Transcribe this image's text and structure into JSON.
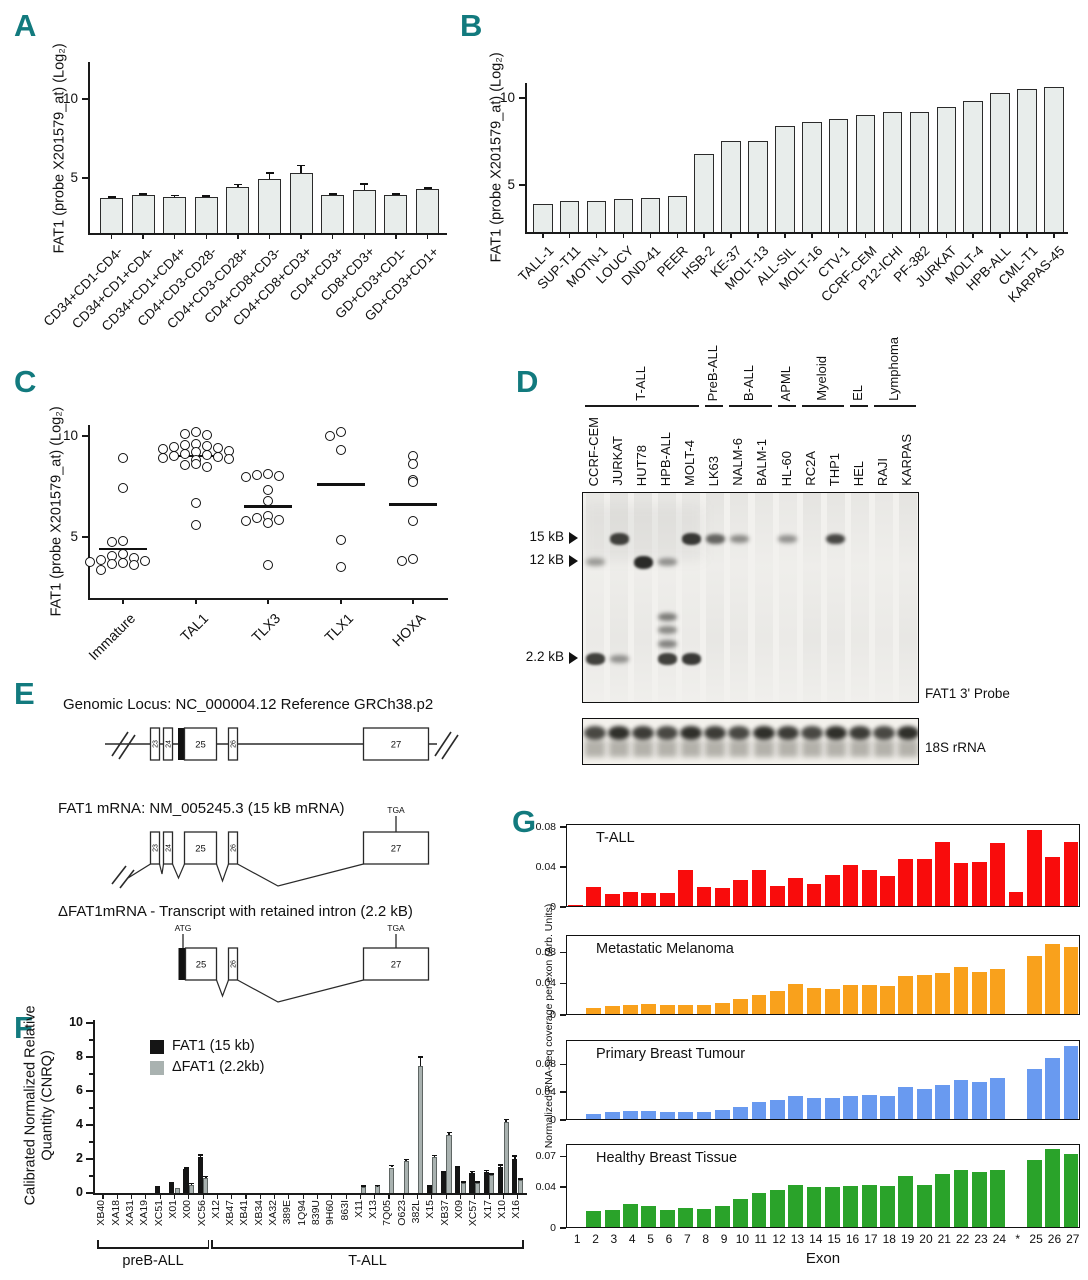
{
  "figure": {
    "panel_letters": {
      "a": "A",
      "b": "B",
      "c": "C",
      "d": "D",
      "e": "E",
      "f": "F",
      "g": "G"
    },
    "accent_color": "#127a7e"
  },
  "chart_data": [
    {
      "id": "A",
      "type": "bar",
      "ylabel": "FAT1 (probe X201579_at) (Log₂)",
      "yticks": [
        5,
        10
      ],
      "ylim": [
        1.5,
        12.3
      ],
      "bar_color": "#e8edeb",
      "categories": [
        "CD34+CD1-CD4-",
        "CD34+CD1+CD4-",
        "CD34+CD1+CD4+",
        "CD4+CD3-CD28-",
        "CD4+CD3-CD28+",
        "CD4+CD8+CD3-",
        "CD4+CD8+CD3+",
        "CD4+CD3+",
        "CD8+CD3+",
        "GD+CD3+CD1-",
        "GD+CD3+CD1+"
      ],
      "values": [
        3.7,
        3.9,
        3.8,
        3.8,
        4.4,
        4.9,
        5.3,
        3.9,
        4.2,
        3.9,
        4.3
      ],
      "errors": [
        0.06,
        0.05,
        0.06,
        0.04,
        0.15,
        0.4,
        0.45,
        0.05,
        0.4,
        0.05,
        0.04
      ]
    },
    {
      "id": "B",
      "type": "bar",
      "ylabel": "FAT1 (probe X201579_at) (Log₂)",
      "yticks": [
        5,
        10
      ],
      "ylim": [
        2.3,
        11.9
      ],
      "bar_color": "#e8edeb",
      "categories": [
        "TALL-1",
        "SUP-T11",
        "MOTN-1",
        "LOUCY",
        "DND-41",
        "PEER",
        "HSB-2",
        "KE-37",
        "MOLT-13",
        "ALL-SIL",
        "MOLT-16",
        "CTV-1",
        "CCRF-CEM",
        "P12-ICHI",
        "PF-382",
        "JURKAT",
        "MOLT-4",
        "HPB-ALL",
        "CML-T1",
        "KARPAS-45"
      ],
      "values": [
        3.9,
        4.1,
        4.1,
        4.2,
        4.25,
        4.35,
        6.8,
        7.55,
        7.55,
        8.4,
        8.65,
        8.8,
        9.0,
        9.2,
        9.2,
        9.5,
        9.85,
        10.3,
        10.5,
        10.65
      ],
      "errors": [
        0,
        0,
        0,
        0,
        0,
        0,
        0,
        0,
        0,
        0,
        0,
        0,
        0,
        0,
        0,
        0,
        0,
        0,
        0,
        0
      ]
    },
    {
      "id": "C",
      "type": "scatter",
      "ylabel": "FAT1 (probe X201579_at) (Log₂)",
      "yticks": [
        5,
        10
      ],
      "ylim": [
        1.95,
        10.6
      ],
      "groups": [
        {
          "label": "Immature",
          "median": 4.4,
          "points": [
            8.9,
            7.4,
            4.8,
            4.75,
            4.15,
            4.05,
            3.95,
            3.85,
            3.8,
            3.75,
            3.7,
            3.65,
            3.6,
            3.35
          ]
        },
        {
          "label": "TAL1",
          "median": 9.0,
          "points": [
            10.2,
            10.1,
            10.05,
            9.6,
            9.55,
            9.5,
            9.45,
            9.4,
            9.35,
            9.25,
            9.2,
            9.1,
            9.05,
            9.0,
            8.95,
            8.9,
            8.85,
            8.8,
            8.6,
            8.55,
            8.45,
            6.7,
            5.6
          ]
        },
        {
          "label": "TLX3",
          "median": 6.5,
          "points": [
            8.1,
            8.05,
            8.0,
            7.95,
            7.3,
            6.8,
            6.05,
            5.95,
            5.85,
            5.8,
            5.7,
            3.6
          ]
        },
        {
          "label": "TLX1",
          "median": 7.6,
          "points": [
            10.2,
            10.0,
            9.3,
            4.85,
            3.5
          ]
        },
        {
          "label": "HOXA",
          "median": 6.6,
          "points": [
            9.0,
            8.6,
            7.8,
            7.7,
            5.8,
            3.9,
            3.8
          ]
        }
      ]
    },
    {
      "id": "F",
      "type": "bar",
      "ylabel": "Calibrated Normalized Relative Quantity (CNRQ)",
      "yticks": [
        0,
        2,
        4,
        6,
        8,
        10
      ],
      "ylim": [
        0,
        10
      ],
      "legend": [
        {
          "label": "FAT1 (15 kb)",
          "color": "#151515"
        },
        {
          "label": "ΔFAT1 (2.2kb)",
          "color": "#a9b2b0"
        }
      ],
      "categories": [
        "XB40",
        "XA18",
        "XA31",
        "XA19",
        "XC51",
        "X01",
        "X00",
        "XC56",
        "X12",
        "XB47",
        "XB41",
        "XB34",
        "XA32",
        "389E",
        "1Q94",
        "839U",
        "9H60",
        "863I",
        "X11",
        "X13",
        "7Q05",
        "O623",
        "382L",
        "X15",
        "XB37",
        "X09",
        "XC57",
        "X17",
        "X10",
        "X16"
      ],
      "series": [
        {
          "name": "FAT1 (15 kb)",
          "color": "#151515",
          "values": [
            0,
            0,
            0,
            0,
            0.4,
            0.65,
            1.4,
            2.1,
            0,
            0,
            0,
            0,
            0,
            0,
            0,
            0,
            0,
            0,
            0,
            0,
            0,
            0,
            0,
            0.35,
            1.15,
            1.45,
            1.2,
            1.25,
            1.55,
            2.0
          ],
          "errors": [
            0,
            0,
            0,
            0,
            0,
            0,
            0.06,
            0.12,
            0,
            0,
            0,
            0,
            0,
            0,
            0,
            0,
            0,
            0,
            0,
            0,
            0,
            0,
            0,
            0.04,
            0.07,
            0.06,
            0.05,
            0.05,
            0.07,
            0.15
          ]
        },
        {
          "name": "ΔFAT1 (2.2kb)",
          "color": "#a9b2b0",
          "values": [
            0,
            0,
            0,
            0,
            0,
            0.3,
            0.5,
            0.9,
            0,
            0,
            0,
            0,
            0,
            0,
            0,
            0,
            0,
            0,
            0.35,
            0.4,
            1.5,
            1.9,
            7.5,
            2.1,
            3.4,
            0.6,
            0.6,
            1.05,
            4.2,
            0.75
          ],
          "errors": [
            0,
            0,
            0,
            0,
            0,
            0,
            0.04,
            0.06,
            0,
            0,
            0,
            0,
            0,
            0,
            0,
            0,
            0,
            0,
            0.04,
            0.04,
            0.1,
            0.06,
            0.5,
            0.1,
            0.15,
            0.04,
            0.04,
            0.06,
            0.12,
            0.05
          ]
        }
      ],
      "group_brackets": [
        {
          "label": "preB-ALL",
          "from": 0,
          "to": 7
        },
        {
          "label": "T-ALL",
          "from": 8,
          "to": 29
        }
      ]
    },
    {
      "id": "G",
      "type": "bar-multi-panel",
      "shared_ylabel": "Normalized RNA-seq coverage per exon (Arb. Units)",
      "xlabel": "Exon",
      "categories": [
        "1",
        "2",
        "3",
        "4",
        "5",
        "6",
        "7",
        "8",
        "9",
        "10",
        "11",
        "12",
        "13",
        "14",
        "15",
        "16",
        "17",
        "18",
        "19",
        "20",
        "21",
        "22",
        "23",
        "24",
        "*",
        "25",
        "26",
        "27"
      ],
      "panels": [
        {
          "title": "T-ALL",
          "color": "#f90c0c",
          "yticks": [
            0,
            0.04,
            0.08
          ],
          "ylim": [
            0,
            0.083
          ],
          "values": [
            0.002,
            0.02,
            0.013,
            0.015,
            0.014,
            0.014,
            0.037,
            0.02,
            0.019,
            0.027,
            0.037,
            0.021,
            0.029,
            0.023,
            0.032,
            0.042,
            0.037,
            0.031,
            0.048,
            0.048,
            0.065,
            0.044,
            0.045,
            0.064,
            0.015,
            0.077,
            0.05,
            0.065
          ]
        },
        {
          "title": "Metastatic Melanoma",
          "color": "#f9a11c",
          "yticks": [
            0,
            0.04,
            0.08
          ],
          "ylim": [
            0,
            0.102
          ],
          "values": [
            0,
            0.009,
            0.011,
            0.013,
            0.014,
            0.013,
            0.013,
            0.013,
            0.015,
            0.021,
            0.026,
            0.031,
            0.039,
            0.034,
            0.033,
            0.038,
            0.038,
            0.037,
            0.05,
            0.051,
            0.054,
            0.061,
            0.055,
            0.059,
            0,
            0.075,
            0.09,
            0.087
          ]
        },
        {
          "title": "Primary Breast Tumour",
          "color": "#699af0",
          "yticks": [
            0,
            0.04,
            0.08
          ],
          "ylim": [
            0,
            0.115
          ],
          "values": [
            0,
            0.009,
            0.011,
            0.013,
            0.013,
            0.011,
            0.012,
            0.012,
            0.014,
            0.019,
            0.026,
            0.029,
            0.034,
            0.032,
            0.031,
            0.034,
            0.036,
            0.035,
            0.047,
            0.044,
            0.051,
            0.058,
            0.055,
            0.06,
            0,
            0.074,
            0.089,
            0.106
          ]
        },
        {
          "title": "Healthy Breast Tissue",
          "color": "#2aa32a",
          "yticks": [
            0,
            0.04,
            0.07
          ],
          "ylim": [
            0,
            0.082
          ],
          "values": [
            0,
            0.017,
            0.018,
            0.023,
            0.021,
            0.018,
            0.02,
            0.019,
            0.021,
            0.028,
            0.034,
            0.037,
            0.042,
            0.04,
            0.04,
            0.041,
            0.042,
            0.041,
            0.051,
            0.042,
            0.053,
            0.057,
            0.055,
            0.057,
            0,
            0.066,
            0.077,
            0.072
          ]
        }
      ]
    }
  ],
  "northern_blot": {
    "lanes": [
      "CCRF-CEM",
      "JURKAT",
      "HUT78",
      "HPB-ALL",
      "MOLT-4",
      "LK63",
      "NALM-6",
      "BALM-1",
      "HL-60",
      "RC2A",
      "THP1",
      "HEL",
      "RAJI",
      "KARPAS"
    ],
    "group_headers": [
      {
        "label": "T-ALL",
        "from": 0,
        "to": 4
      },
      {
        "label": "PreB-ALL",
        "from": 5,
        "to": 5
      },
      {
        "label": "B-ALL",
        "from": 6,
        "to": 7
      },
      {
        "label": "APML",
        "from": 8,
        "to": 8
      },
      {
        "label": "Myeloid",
        "from": 9,
        "to": 10
      },
      {
        "label": "EL",
        "from": 11,
        "to": 11
      },
      {
        "label": "Lymphoma",
        "from": 12,
        "to": 13
      }
    ],
    "size_markers": [
      {
        "label": "15 kB",
        "row": "15kB"
      },
      {
        "label": "12 kB",
        "row": "12kB"
      },
      {
        "label": "2.2 kB",
        "row": "2.2kB"
      }
    ],
    "bands": [
      {
        "lane": 1,
        "row": "15kB",
        "intensity": 0.85
      },
      {
        "lane": 4,
        "row": "15kB",
        "intensity": 0.9
      },
      {
        "lane": 5,
        "row": "15kB",
        "intensity": 0.6
      },
      {
        "lane": 6,
        "row": "15kB",
        "intensity": 0.35
      },
      {
        "lane": 8,
        "row": "15kB",
        "intensity": 0.3
      },
      {
        "lane": 10,
        "row": "15kB",
        "intensity": 0.8
      },
      {
        "lane": 0,
        "row": "12kB",
        "intensity": 0.25
      },
      {
        "lane": 2,
        "row": "12kB",
        "intensity": 1.0
      },
      {
        "lane": 3,
        "row": "12kB",
        "intensity": 0.3
      },
      {
        "lane": 3,
        "row": "ladder1",
        "intensity": 0.45
      },
      {
        "lane": 3,
        "row": "ladder2",
        "intensity": 0.35
      },
      {
        "lane": 3,
        "row": "ladder3",
        "intensity": 0.4
      },
      {
        "lane": 0,
        "row": "2.2kB",
        "intensity": 0.85
      },
      {
        "lane": 1,
        "row": "2.2kB",
        "intensity": 0.3
      },
      {
        "lane": 3,
        "row": "2.2kB",
        "intensity": 0.85
      },
      {
        "lane": 4,
        "row": "2.2kB",
        "intensity": 0.9
      }
    ],
    "probe_label": "FAT1 3' Probe",
    "loading_label": "18S rRNA"
  },
  "gene_diagrams": {
    "locus_title": "Genomic Locus: NC_000004.12 Reference GRCh38.p2",
    "mrna_title": "FAT1  mRNA: NM_005245.3 (15 kB mRNA)",
    "delta_title": "ΔFAT1mRNA - Transcript with retained intron (2.2 kB)",
    "exon23": "23",
    "exon24": "24",
    "exon25": "25",
    "exon26": "26",
    "exon27": "27",
    "start_codon": "ATG",
    "stop_codon": "TGA"
  }
}
